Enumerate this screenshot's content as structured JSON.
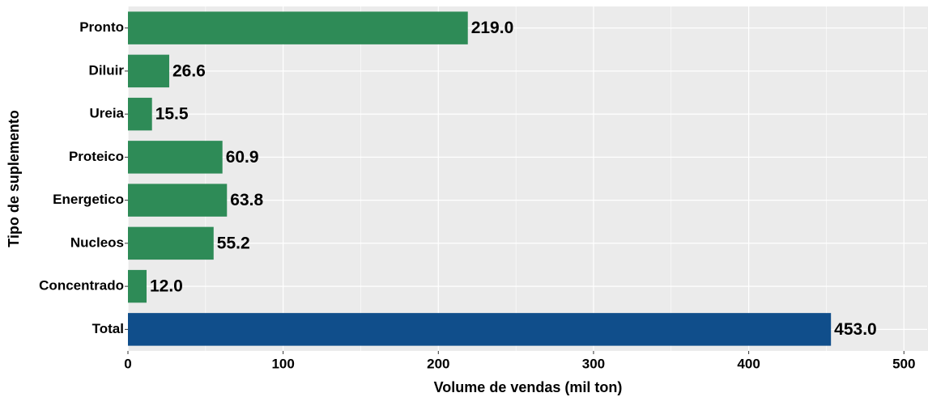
{
  "chart_data": {
    "type": "hbar",
    "categories": [
      "Pronto",
      "Diluir",
      "Ureia",
      "Proteico",
      "Energetico",
      "Nucleos",
      "Concentrado",
      "Total"
    ],
    "values": [
      219.0,
      26.6,
      15.5,
      60.9,
      63.8,
      55.2,
      12.0,
      453.0
    ],
    "value_labels": [
      "219.0",
      "26.6",
      "15.5",
      "60.9",
      "63.8",
      "55.2",
      "12.0",
      "453.0"
    ],
    "colors": [
      "#2e8b57",
      "#2e8b57",
      "#2e8b57",
      "#2e8b57",
      "#2e8b57",
      "#2e8b57",
      "#2e8b57",
      "#104e8b"
    ],
    "xlabel": "Volume de vendas (mil ton)",
    "ylabel": "Tipo de suplemento",
    "xlim": [
      0,
      515
    ],
    "xticks": [
      0,
      100,
      200,
      300,
      400,
      500
    ],
    "minor_xticks": [
      50,
      150,
      250,
      350,
      450
    ],
    "grid": true
  }
}
